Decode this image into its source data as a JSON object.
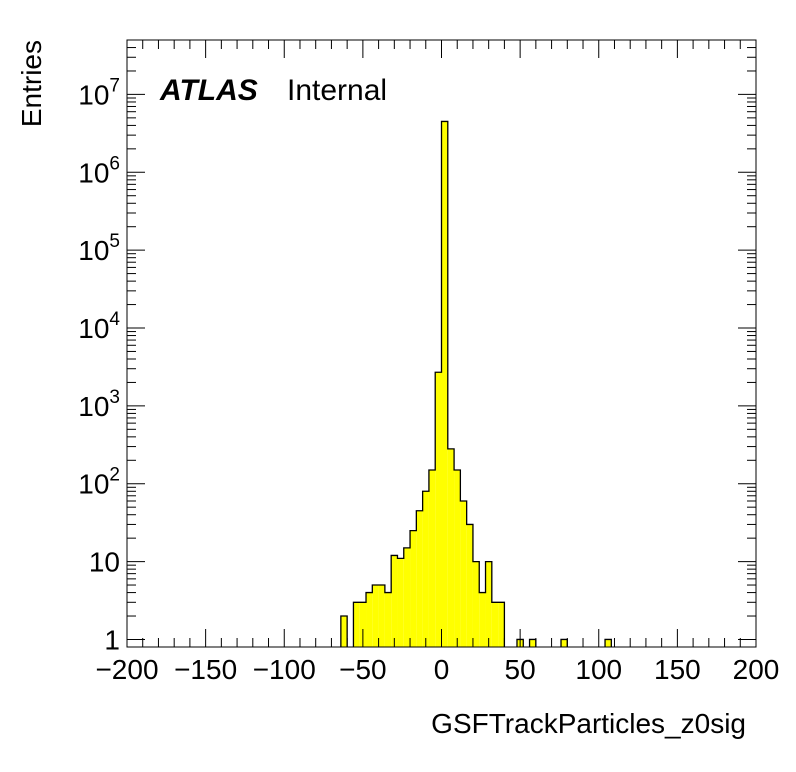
{
  "chart_data": {
    "type": "bar",
    "xlabel": "GSFTrackParticles_z0sig",
    "ylabel": "Entries",
    "label_bold": "ATLAS",
    "label_text": "Internal",
    "xlim": [
      -200,
      200
    ],
    "ylim": [
      0.8,
      50000000
    ],
    "yscale": "log",
    "bin_width": 4,
    "fill_color": "#ffff00",
    "line_color": "#000000",
    "x_ticks": [
      -200,
      -150,
      -100,
      -50,
      0,
      50,
      100,
      150,
      200
    ],
    "x_tick_labels": [
      "−200",
      "−150",
      "−100",
      "−50",
      "0",
      "50",
      "100",
      "150",
      "200"
    ],
    "y_ticks": [
      {
        "value": 1,
        "base": "1",
        "exp": ""
      },
      {
        "value": 10,
        "base": "10",
        "exp": ""
      },
      {
        "value": 100,
        "base": "10",
        "exp": "2"
      },
      {
        "value": 1000,
        "base": "10",
        "exp": "3"
      },
      {
        "value": 10000,
        "base": "10",
        "exp": "4"
      },
      {
        "value": 100000,
        "base": "10",
        "exp": "5"
      },
      {
        "value": 1000000,
        "base": "10",
        "exp": "6"
      },
      {
        "value": 10000000,
        "base": "10",
        "exp": "7"
      }
    ],
    "bins": [
      {
        "x": -64,
        "y": 2
      },
      {
        "x": -60,
        "y": 0
      },
      {
        "x": -56,
        "y": 3
      },
      {
        "x": -52,
        "y": 3
      },
      {
        "x": -48,
        "y": 4
      },
      {
        "x": -44,
        "y": 5
      },
      {
        "x": -40,
        "y": 5
      },
      {
        "x": -36,
        "y": 4
      },
      {
        "x": -32,
        "y": 12
      },
      {
        "x": -28,
        "y": 11
      },
      {
        "x": -24,
        "y": 15
      },
      {
        "x": -20,
        "y": 25
      },
      {
        "x": -16,
        "y": 45
      },
      {
        "x": -12,
        "y": 80
      },
      {
        "x": -8,
        "y": 150
      },
      {
        "x": -4,
        "y": 2700
      },
      {
        "x": 0,
        "y": 4500000
      },
      {
        "x": 4,
        "y": 280
      },
      {
        "x": 8,
        "y": 150
      },
      {
        "x": 12,
        "y": 60
      },
      {
        "x": 16,
        "y": 30
      },
      {
        "x": 20,
        "y": 10
      },
      {
        "x": 24,
        "y": 4
      },
      {
        "x": 28,
        "y": 10
      },
      {
        "x": 32,
        "y": 3
      },
      {
        "x": 36,
        "y": 3
      },
      {
        "x": 40,
        "y": 0
      },
      {
        "x": 44,
        "y": 0
      },
      {
        "x": 48,
        "y": 1
      },
      {
        "x": 52,
        "y": 0
      },
      {
        "x": 56,
        "y": 1
      },
      {
        "x": 76,
        "y": 1
      },
      {
        "x": 104,
        "y": 1
      }
    ]
  }
}
